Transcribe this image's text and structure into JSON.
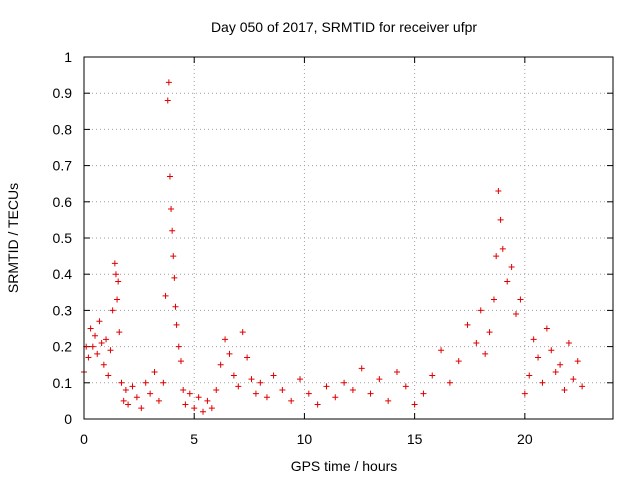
{
  "chart_data": {
    "type": "scatter",
    "title": "Day 050 of 2017, SRMTID for receiver ufpr",
    "xlabel": "GPS time / hours",
    "ylabel": "SRMTID / TECUs",
    "xlim": [
      0,
      24
    ],
    "ylim": [
      0,
      1
    ],
    "x_ticks": [
      0,
      5,
      10,
      15,
      20
    ],
    "y_ticks": [
      0,
      0.1,
      0.2,
      0.3,
      0.4,
      0.5,
      0.6,
      0.7,
      0.8,
      0.9,
      1
    ],
    "x_tick_labels": [
      "0",
      "5",
      "10",
      "15",
      "20"
    ],
    "y_tick_labels": [
      "0",
      "0.1",
      "0.2",
      "0.3",
      "0.4",
      "0.5",
      "0.6",
      "0.7",
      "0.8",
      "0.9",
      "1"
    ],
    "grid": true,
    "marker": "+",
    "color": "#e00000",
    "series": [
      {
        "name": "SRMTID",
        "x": [
          0.0,
          0.1,
          0.2,
          0.3,
          0.4,
          0.5,
          0.6,
          0.7,
          0.8,
          0.9,
          1.0,
          1.1,
          1.2,
          1.3,
          1.4,
          1.45,
          1.5,
          1.55,
          1.6,
          1.7,
          1.8,
          1.9,
          2.0,
          2.2,
          2.4,
          2.6,
          2.8,
          3.0,
          3.2,
          3.4,
          3.6,
          3.7,
          3.8,
          3.85,
          3.9,
          3.95,
          4.0,
          4.05,
          4.1,
          4.15,
          4.2,
          4.3,
          4.4,
          4.5,
          4.6,
          4.8,
          5.0,
          5.2,
          5.4,
          5.6,
          5.8,
          6.0,
          6.2,
          6.4,
          6.6,
          6.8,
          7.0,
          7.2,
          7.4,
          7.6,
          7.8,
          8.0,
          8.3,
          8.6,
          9.0,
          9.4,
          9.8,
          10.2,
          10.6,
          11.0,
          11.4,
          11.8,
          12.2,
          12.6,
          13.0,
          13.4,
          13.8,
          14.2,
          14.6,
          15.0,
          15.4,
          15.8,
          16.2,
          16.6,
          17.0,
          17.4,
          17.8,
          18.0,
          18.2,
          18.4,
          18.6,
          18.7,
          18.8,
          18.9,
          19.0,
          19.2,
          19.4,
          19.6,
          19.8,
          20.0,
          20.2,
          20.4,
          20.6,
          20.8,
          21.0,
          21.2,
          21.4,
          21.6,
          21.8,
          22.0,
          22.2,
          22.4,
          22.6
        ],
        "y": [
          0.13,
          0.2,
          0.17,
          0.25,
          0.2,
          0.23,
          0.18,
          0.27,
          0.21,
          0.15,
          0.22,
          0.12,
          0.19,
          0.3,
          0.43,
          0.4,
          0.33,
          0.38,
          0.24,
          0.1,
          0.05,
          0.08,
          0.04,
          0.09,
          0.06,
          0.03,
          0.1,
          0.07,
          0.13,
          0.05,
          0.1,
          0.34,
          0.88,
          0.93,
          0.67,
          0.58,
          0.52,
          0.45,
          0.39,
          0.31,
          0.26,
          0.2,
          0.16,
          0.08,
          0.04,
          0.07,
          0.03,
          0.06,
          0.02,
          0.05,
          0.03,
          0.08,
          0.15,
          0.22,
          0.18,
          0.12,
          0.09,
          0.24,
          0.17,
          0.11,
          0.07,
          0.1,
          0.06,
          0.12,
          0.08,
          0.05,
          0.11,
          0.07,
          0.04,
          0.09,
          0.06,
          0.1,
          0.08,
          0.14,
          0.07,
          0.11,
          0.05,
          0.13,
          0.09,
          0.04,
          0.07,
          0.12,
          0.19,
          0.1,
          0.16,
          0.26,
          0.21,
          0.3,
          0.18,
          0.24,
          0.33,
          0.45,
          0.63,
          0.55,
          0.47,
          0.38,
          0.42,
          0.29,
          0.33,
          0.07,
          0.12,
          0.22,
          0.17,
          0.1,
          0.25,
          0.19,
          0.13,
          0.15,
          0.08,
          0.21,
          0.11,
          0.16,
          0.09
        ]
      }
    ]
  }
}
